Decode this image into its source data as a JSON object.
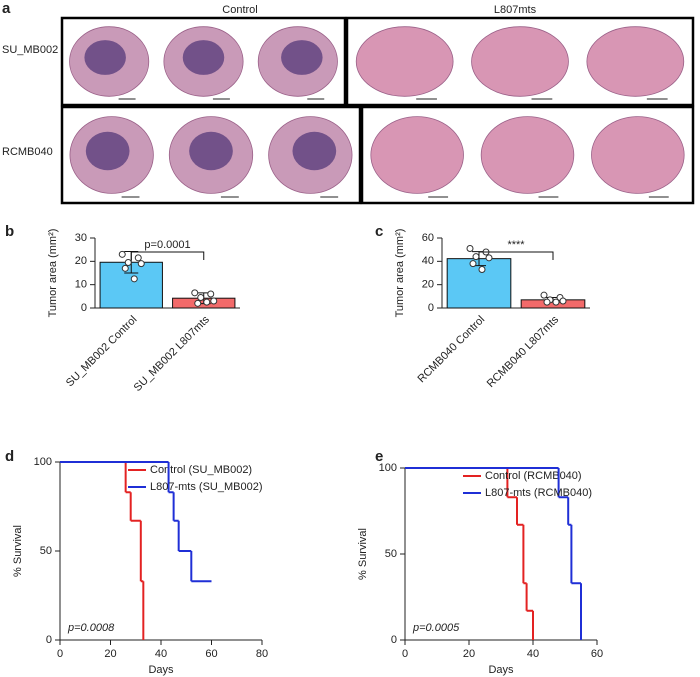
{
  "panel_a": {
    "panel": "a",
    "columns": [
      "Control",
      "L807mts"
    ],
    "rows": [
      "SU_MB002",
      "RCMB040"
    ]
  },
  "chart_data": [
    {
      "type": "bar",
      "panel": "b",
      "ylabel": "Tumor area (mm²)",
      "annotation": "p=0.0001",
      "categories": [
        "SU_MB002 Control",
        "SU_MB002 L807mts"
      ],
      "colors": [
        "#5bc8f5",
        "#f26a6a"
      ],
      "values": [
        19.6,
        4.2
      ],
      "errors": [
        4.6,
        2.3
      ],
      "points": [
        [
          23,
          21.5,
          19.5,
          19,
          17,
          12.5
        ],
        [
          6.5,
          6,
          4.5,
          3,
          2,
          2.5
        ]
      ],
      "ylim": [
        0,
        30
      ],
      "yticks": [
        0,
        10,
        20,
        30
      ]
    },
    {
      "type": "bar",
      "panel": "c",
      "ylabel": "Tumor area (mm²)",
      "annotation": "****",
      "categories": [
        "RCMB040 Control",
        "RCMB040 L807mts"
      ],
      "colors": [
        "#5bc8f5",
        "#f26a6a"
      ],
      "values": [
        42.3,
        7.0
      ],
      "errors": [
        6,
        2
      ],
      "points": [
        [
          51,
          48,
          44,
          43,
          38,
          33
        ],
        [
          11,
          9,
          7,
          6,
          5,
          5
        ]
      ],
      "ylim": [
        0,
        60
      ],
      "yticks": [
        0,
        20,
        40,
        60
      ]
    },
    {
      "type": "line",
      "drawstyle": "steps-post",
      "panel": "d",
      "xlabel": "Days",
      "ylabel": "% Survival",
      "annotation": "p=0.0008",
      "legend": "upper right",
      "series": [
        {
          "name": "Control (SU_MB002)",
          "color": "#e32222",
          "x": [
            0,
            26,
            28,
            32,
            33
          ],
          "values": [
            100,
            83,
            67,
            33,
            0
          ]
        },
        {
          "name": "L807-mts (SU_MB002)",
          "color": "#1f2fd6",
          "x": [
            0,
            43,
            45,
            47,
            52,
            60
          ],
          "values": [
            100,
            83,
            67,
            50,
            33,
            33
          ]
        }
      ],
      "xlim": [
        0,
        80
      ],
      "xticks": [
        0,
        20,
        40,
        60,
        80
      ],
      "ylim": [
        0,
        100
      ],
      "yticks": [
        0,
        50,
        100
      ]
    },
    {
      "type": "line",
      "drawstyle": "steps-post",
      "panel": "e",
      "xlabel": "Days",
      "ylabel": "% Survival",
      "annotation": "p=0.0005",
      "legend": "upper right",
      "series": [
        {
          "name": "Control (RCMB040)",
          "color": "#e32222",
          "x": [
            0,
            32,
            35,
            37,
            38,
            40
          ],
          "values": [
            100,
            83,
            67,
            33,
            17,
            0
          ]
        },
        {
          "name": "L807-mts (RCMB040)",
          "color": "#1f2fd6",
          "x": [
            0,
            48,
            51,
            52,
            55
          ],
          "values": [
            100,
            83,
            67,
            33,
            0
          ]
        }
      ],
      "xlim": [
        0,
        60
      ],
      "xticks": [
        0,
        20,
        40,
        60
      ],
      "ylim": [
        0,
        100
      ],
      "yticks": [
        0,
        50,
        100
      ]
    }
  ]
}
